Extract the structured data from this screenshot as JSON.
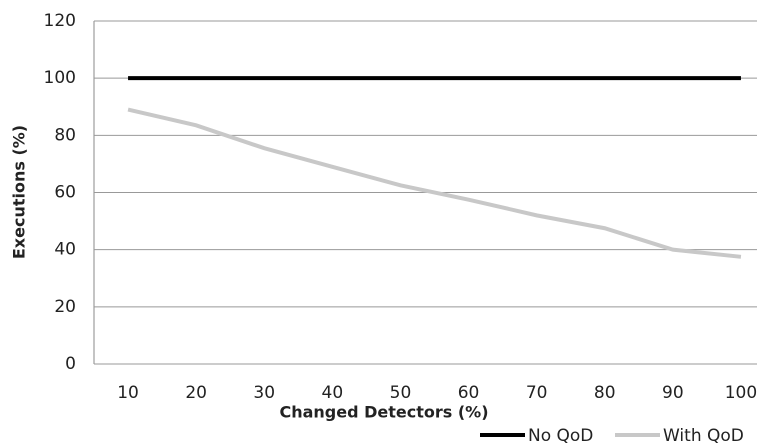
{
  "chart_data": {
    "type": "line",
    "x_label": "Changed Detectors (%)",
    "y_label": "Executions (%)",
    "categories": [
      "10",
      "20",
      "30",
      "40",
      "50",
      "60",
      "70",
      "80",
      "90",
      "100"
    ],
    "series": [
      {
        "name": "No QoD",
        "color": "#000000",
        "values": [
          100,
          100,
          100,
          100,
          100,
          100,
          100,
          100,
          100,
          100
        ]
      },
      {
        "name": "With QoD",
        "color": "#c8c8c8",
        "values": [
          89,
          83.5,
          75.5,
          69,
          62.5,
          57.5,
          52,
          47.5,
          40,
          37.5
        ]
      }
    ],
    "ylim": [
      0,
      120
    ],
    "yticks": [
      0,
      20,
      40,
      60,
      80,
      100,
      120
    ],
    "grid": true,
    "legend": "bottom-right"
  }
}
